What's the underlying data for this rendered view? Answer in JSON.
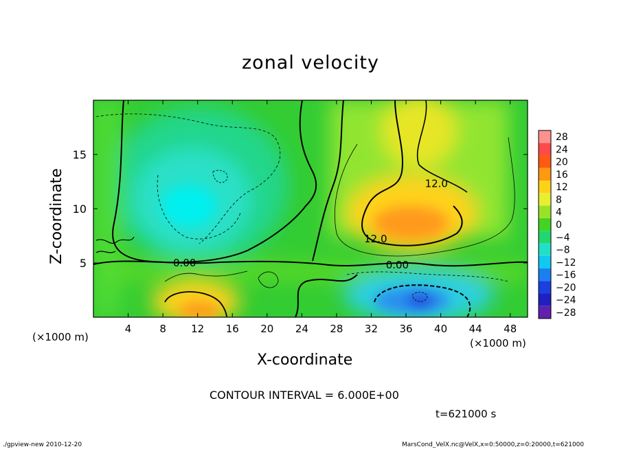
{
  "chart_data": {
    "type": "heatmap",
    "title": "zonal velocity",
    "xlabel": "X-coordinate",
    "ylabel": "Z-coordinate",
    "x_unit_label": "(×1000 m)",
    "xlim": [
      0,
      50
    ],
    "ylim": [
      0,
      20
    ],
    "xticks": [
      4,
      8,
      12,
      16,
      20,
      24,
      28,
      32,
      36,
      40,
      44,
      48
    ],
    "yticks": [
      5,
      10,
      15
    ],
    "colorbar": {
      "levels": [
        -28,
        -24,
        -20,
        -16,
        -12,
        -8,
        -4,
        0,
        4,
        8,
        12,
        16,
        20,
        24,
        28
      ],
      "labels": [
        "28",
        "24",
        "20",
        "16",
        "12",
        "8",
        "4",
        "0",
        "−4",
        "−8",
        "−12",
        "−16",
        "−20",
        "−24",
        "−28"
      ]
    },
    "contour_labels": [
      {
        "text": "0.00",
        "x": 10.5,
        "y": 5.0
      },
      {
        "text": "0.00",
        "x": 35.0,
        "y": 4.8
      },
      {
        "text": "12.0",
        "x": 39.5,
        "y": 12.3
      },
      {
        "text": "12.0",
        "x": 32.5,
        "y": 7.2
      }
    ],
    "features": [
      {
        "name": "negative-core-west",
        "x": 11,
        "y": 10.5,
        "value": -10
      },
      {
        "name": "negative-core-lower",
        "x": 37.5,
        "y": 1.5,
        "value": -22
      },
      {
        "name": "positive-core-upper",
        "x": 36,
        "y": 8,
        "value": 16
      },
      {
        "name": "positive-core-lower",
        "x": 13,
        "y": 1,
        "value": 15
      }
    ],
    "contour_interval": "CONTOUR INTERVAL = 6.000E+00",
    "time": "t=621000 s"
  },
  "footer": {
    "left": "./gpview-new  2010-12-20",
    "right": "MarsCond_VelX.nc@VelX,x=0:50000,z=0:20000,t=621000"
  },
  "colors": {
    "frame": "#000000",
    "background": "#ffffff"
  }
}
